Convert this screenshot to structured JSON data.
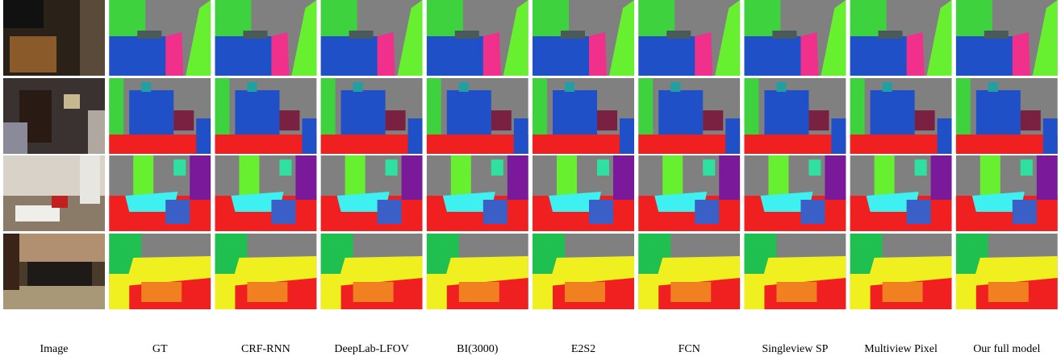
{
  "columns": [
    "Image",
    "GT",
    "CRF-RNN",
    "DeepLab-LFOV",
    "BI(3000)",
    "E2S2",
    "FCN",
    "Singleview SP",
    "Multiview Pixel",
    "Our full model"
  ]
}
